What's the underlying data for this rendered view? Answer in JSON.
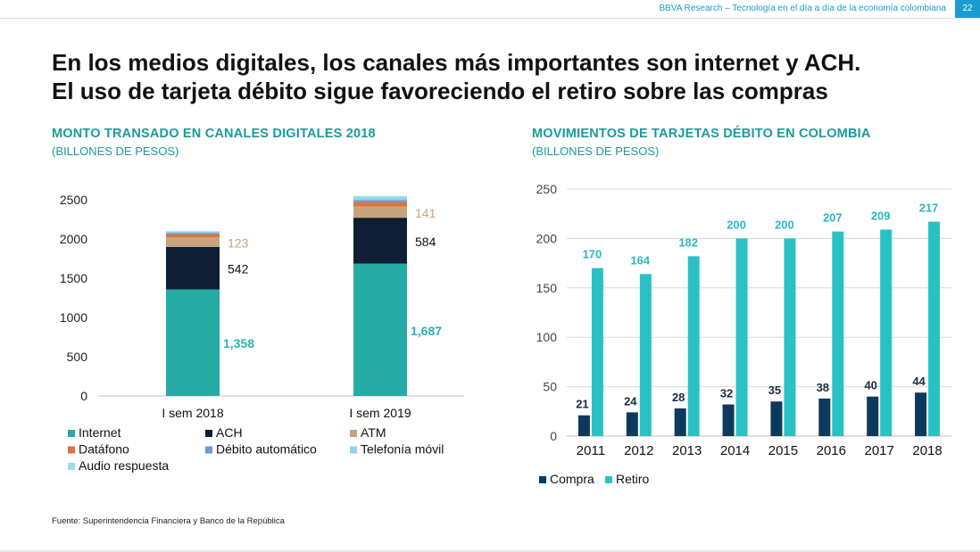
{
  "header": {
    "text": "BBVA Research – Tecnología en el día a día de la economía colombiana",
    "page": "22"
  },
  "title_line1": "En los medios digitales, los canales más importantes son internet y ACH.",
  "title_line2": "El uso de tarjeta débito sigue favoreciendo el retiro sobre las compras",
  "source": "Fuente: Superintendencia Financiera y Banco de la República",
  "colors": {
    "teal": "#25aaa6",
    "navy": "#0f1e33",
    "atm": "#c6a57d",
    "datafono": "#d9743f",
    "debito": "#6f9ad1",
    "telefonia": "#8fd4ee",
    "audio": "#9edbe6",
    "compra": "#0d3a5c",
    "retiro": "#29c1c6",
    "accent": "#1a9b9b"
  },
  "chart_data": [
    {
      "type": "bar",
      "stacked": true,
      "title": "MONTO TRANSADO EN CANALES DIGITALES 2018",
      "subtitle": "(BILLONES DE PESOS)",
      "categories": [
        "I sem 2018",
        "I sem 2019"
      ],
      "ylim": [
        0,
        2500
      ],
      "yticks": [
        "0",
        "500",
        "1000",
        "1500",
        "2000",
        "2500"
      ],
      "series": [
        {
          "name": "Internet",
          "values": [
            1358,
            1687
          ],
          "labels": [
            "1,358",
            "1,687"
          ]
        },
        {
          "name": "ACH",
          "values": [
            542,
            584
          ],
          "labels": [
            "542",
            "584"
          ]
        },
        {
          "name": "ATM",
          "values": [
            123,
            141
          ],
          "labels": [
            "123",
            "141"
          ]
        },
        {
          "name": "Datáfono",
          "values": [
            40,
            60
          ],
          "labels": [
            "",
            ""
          ]
        },
        {
          "name": "Débito automático",
          "values": [
            15,
            25
          ],
          "labels": [
            "",
            ""
          ]
        },
        {
          "name": "Telefonía móvil",
          "values": [
            15,
            35
          ],
          "labels": [
            "",
            ""
          ]
        },
        {
          "name": "Audio respuesta",
          "values": [
            8,
            15
          ],
          "labels": [
            "",
            ""
          ]
        }
      ],
      "legend": [
        "Internet",
        "ACH",
        "ATM",
        "Datáfono",
        "Débito automático",
        "Telefonía móvil",
        "Audio respuesta"
      ]
    },
    {
      "type": "bar",
      "title": "MOVIMIENTOS DE TARJETAS DÉBITO EN COLOMBIA",
      "subtitle": "(BILLONES DE PESOS)",
      "categories": [
        "2011",
        "2012",
        "2013",
        "2014",
        "2015",
        "2016",
        "2017",
        "2018"
      ],
      "ylim": [
        0,
        250
      ],
      "yticks": [
        "0",
        "50",
        "100",
        "150",
        "200",
        "250"
      ],
      "series": [
        {
          "name": "Compra",
          "values": [
            21,
            24,
            28,
            32,
            35,
            38,
            40,
            44
          ]
        },
        {
          "name": "Retiro",
          "values": [
            170,
            164,
            182,
            200,
            200,
            207,
            209,
            217
          ]
        }
      ],
      "legend": [
        "Compra",
        "Retiro"
      ]
    }
  ]
}
